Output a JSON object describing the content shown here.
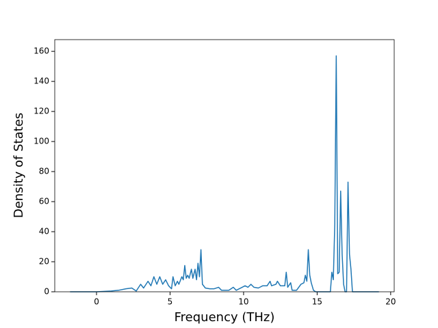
{
  "chart_data": {
    "type": "line",
    "xlabel": "Frequency (THz)",
    "ylabel": "Density of States",
    "x": [
      -1.8,
      0,
      1,
      1.5,
      2,
      2.4,
      2.7,
      3,
      3.2,
      3.5,
      3.7,
      3.9,
      4.1,
      4.3,
      4.5,
      4.7,
      4.9,
      5.1,
      5.2,
      5.35,
      5.5,
      5.6,
      5.8,
      5.9,
      6.0,
      6.1,
      6.2,
      6.3,
      6.45,
      6.55,
      6.7,
      6.8,
      6.9,
      7.0,
      7.1,
      7.2,
      7.4,
      7.7,
      8.0,
      8.3,
      8.5,
      9,
      9.3,
      9.5,
      9.9,
      10.1,
      10.3,
      10.5,
      10.7,
      11,
      11.3,
      11.6,
      11.8,
      11.9,
      12.2,
      12.3,
      12.5,
      12.8,
      12.9,
      13.0,
      13.2,
      13.3,
      13.6,
      13.9,
      14.1,
      14.2,
      14.3,
      14.4,
      14.5,
      14.6,
      14.75,
      14.9,
      15.9,
      16.0,
      16.1,
      16.2,
      16.3,
      16.4,
      16.5,
      16.6,
      16.7,
      16.8,
      16.9,
      17.0,
      17.1,
      17.2,
      17.3,
      17.4,
      19.2
    ],
    "values": [
      0,
      0,
      0.5,
      1,
      2,
      2.5,
      0.5,
      5,
      2.5,
      7,
      4,
      10,
      5,
      10,
      5,
      8,
      4,
      2,
      10,
      4,
      7,
      5,
      10,
      8,
      17.5,
      9,
      11,
      9,
      15,
      9,
      15,
      8,
      19,
      10,
      28,
      5,
      2.5,
      2,
      2,
      3,
      1,
      1,
      3,
      1,
      3,
      4,
      3,
      5,
      3,
      2.5,
      4,
      4,
      7,
      4,
      5,
      7,
      4,
      4,
      13,
      3,
      6,
      1,
      1,
      5,
      6,
      11,
      7,
      28,
      11,
      6,
      1,
      0,
      0,
      13,
      8,
      45,
      157,
      12,
      13,
      67,
      25,
      5,
      0,
      0,
      73,
      25,
      15,
      0,
      0
    ],
    "color": "#1f77b4",
    "xlim": [
      -2.84,
      20.24
    ],
    "xticks": [
      0,
      5,
      10,
      15,
      20
    ],
    "ylim": [
      0,
      167.8
    ],
    "yticks": [
      0,
      20,
      40,
      60,
      80,
      100,
      120,
      140,
      160
    ],
    "grid": false
  }
}
